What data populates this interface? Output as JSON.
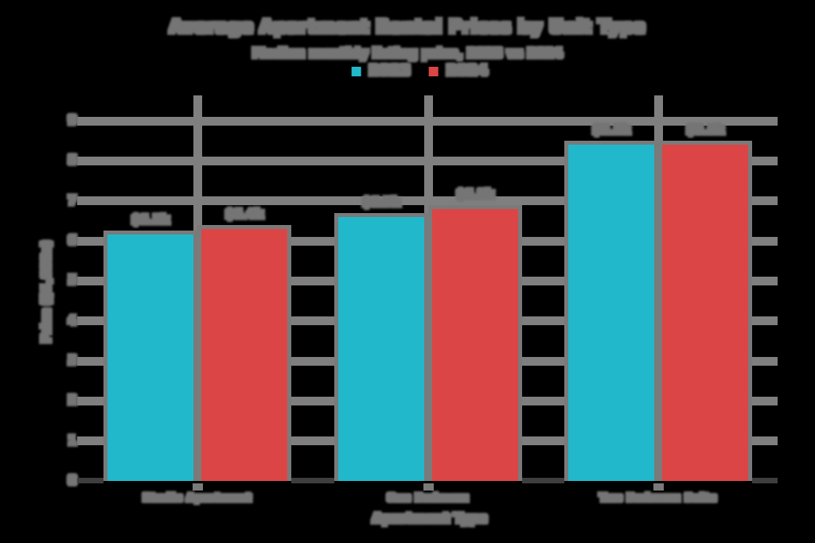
{
  "chart_data": {
    "type": "bar",
    "title": "Average Apartment Rental Prices by Unit Type",
    "subtitle": "Median monthly listing price, 2023 vs 2024",
    "xlabel": "Apartment Type",
    "ylabel": "Price ($1,000s)",
    "categories": [
      "Studio Apartment",
      "One Bedroom",
      "Two Bedroom Suite"
    ],
    "series": [
      {
        "name": "2023",
        "color": "#22b8cc",
        "values": [
          6.25,
          6.7,
          8.5
        ],
        "value_labels": [
          "$6.3k",
          "$6.7k",
          "$8.5k"
        ]
      },
      {
        "name": "2024",
        "color": "#dc4545",
        "values": [
          6.4,
          6.9,
          8.5
        ],
        "value_labels": [
          "$6.4k",
          "$6.9k",
          "$8.5k"
        ]
      }
    ],
    "yticks": [
      "0",
      "1",
      "2",
      "3",
      "4",
      "5",
      "6",
      "7",
      "8",
      "9"
    ],
    "ylim": [
      0,
      9
    ],
    "grid": true,
    "legend_position": "top-center",
    "colors": {
      "background": "#000000",
      "gridline": "#7f7f7f",
      "axis_line": "#3e3e3e",
      "text": "#757575",
      "bar_border": "#7a7a7a"
    }
  }
}
